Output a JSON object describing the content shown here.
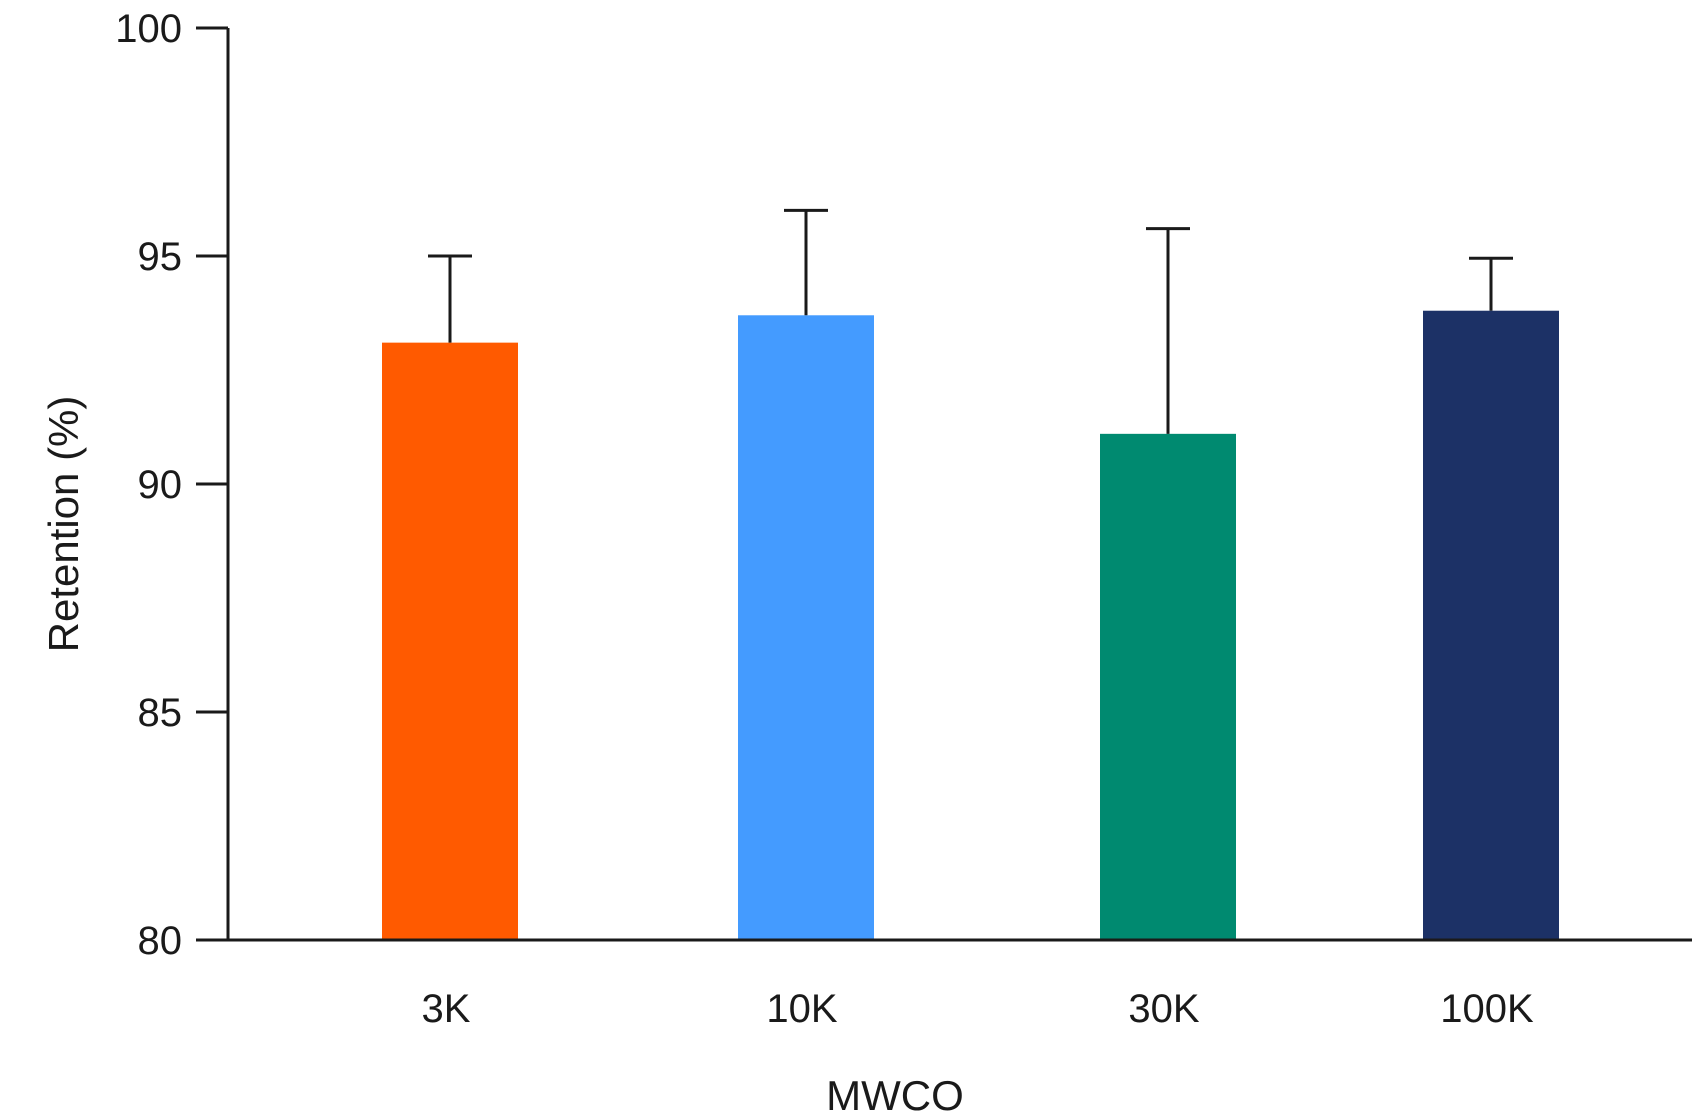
{
  "chart_data": {
    "type": "bar",
    "title": "",
    "xlabel": "MWCO",
    "ylabel": "Retention (%)",
    "ylim": [
      80,
      100
    ],
    "yticks": [
      80,
      85,
      90,
      95,
      100
    ],
    "categories": [
      "3K",
      "10K",
      "30K",
      "100K"
    ],
    "values": [
      93.1,
      93.7,
      91.1,
      93.8
    ],
    "error_upper": [
      1.9,
      2.3,
      4.5,
      1.15
    ],
    "colors": [
      "#FF5A00",
      "#449BFF",
      "#008A70",
      "#1C3166"
    ],
    "grid": false,
    "legend": "none"
  }
}
